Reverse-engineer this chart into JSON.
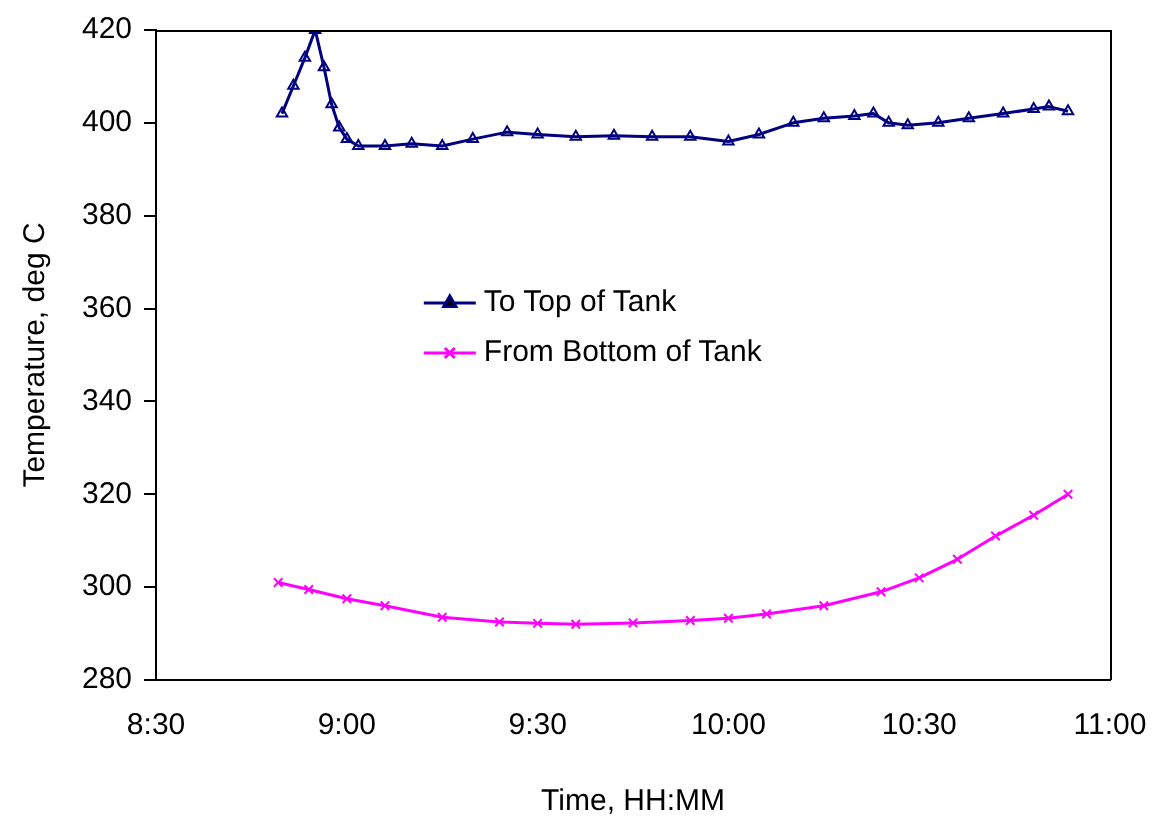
{
  "chart_data": {
    "type": "line",
    "xlabel": "Time, HH:MM",
    "ylabel": "Temperature, deg C",
    "xlim": [
      8.5,
      11
    ],
    "xticks": [
      {
        "value": 8.5,
        "label": "8:30"
      },
      {
        "value": 9,
        "label": "9:00"
      },
      {
        "value": 9.5,
        "label": "9:30"
      },
      {
        "value": 10,
        "label": "10:00"
      },
      {
        "value": 10.5,
        "label": "10:30"
      },
      {
        "value": 11,
        "label": "11:00"
      }
    ],
    "ylim": [
      280,
      420
    ],
    "yticks": [
      280,
      300,
      320,
      340,
      360,
      380,
      400,
      420
    ],
    "grid": false,
    "legend": "center",
    "series": [
      {
        "name": "To Top of Tank",
        "color": "#000080",
        "marker": "triangle",
        "x": [
          8.83,
          8.86,
          8.89,
          8.917,
          8.94,
          8.96,
          8.98,
          9.0,
          9.03,
          9.1,
          9.17,
          9.25,
          9.33,
          9.42,
          9.5,
          9.6,
          9.7,
          9.8,
          9.9,
          10.0,
          10.08,
          10.17,
          10.25,
          10.33,
          10.38,
          10.42,
          10.47,
          10.55,
          10.63,
          10.72,
          10.8,
          10.84,
          10.89
        ],
        "values": [
          402,
          408,
          414,
          420,
          412,
          404,
          399,
          396.5,
          395,
          395,
          395.5,
          395,
          396.5,
          398,
          397.5,
          397,
          397.2,
          397,
          397,
          396,
          397.5,
          400,
          401,
          401.5,
          402,
          400,
          399.5,
          400,
          401,
          402,
          403,
          403.5,
          402.5
        ]
      },
      {
        "name": "From Bottom of Tank",
        "color": "#ff00ff",
        "marker": "cross",
        "x": [
          8.82,
          8.9,
          9.0,
          9.1,
          9.25,
          9.4,
          9.5,
          9.6,
          9.75,
          9.9,
          10.0,
          10.1,
          10.25,
          10.4,
          10.5,
          10.6,
          10.7,
          10.8,
          10.89
        ],
        "values": [
          301,
          299.5,
          297.5,
          296,
          293.5,
          292.5,
          292.2,
          292,
          292.3,
          292.8,
          293.3,
          294.2,
          296,
          299,
          302,
          306,
          311,
          315.5,
          320
        ]
      }
    ]
  }
}
